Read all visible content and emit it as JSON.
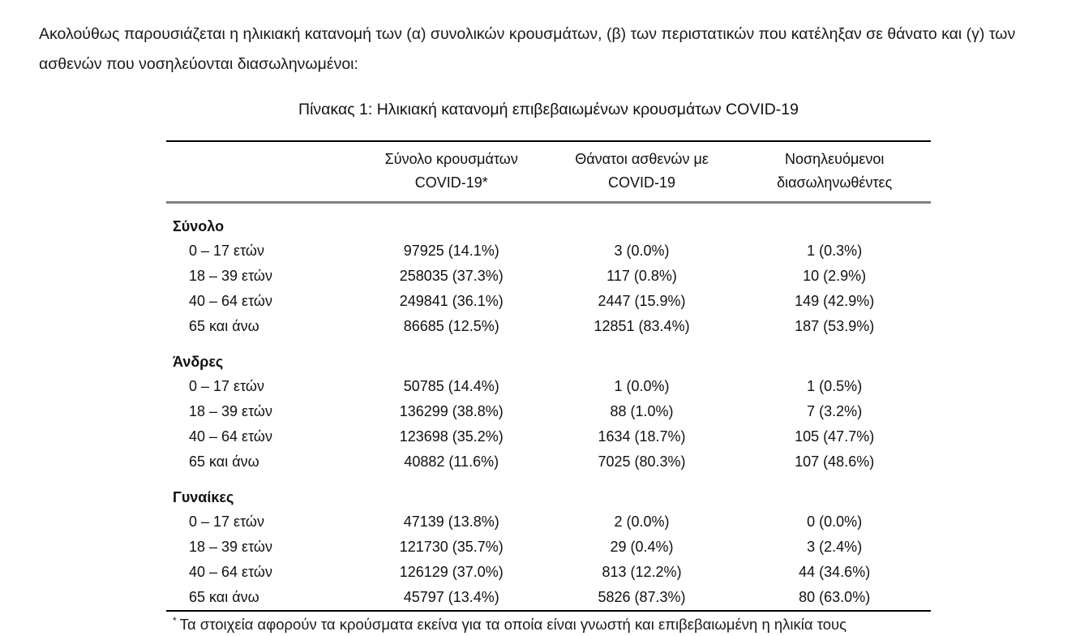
{
  "intro": "Ακολούθως παρουσιάζεται η ηλικιακή κατανομή των (α) συνολικών κρουσμάτων, (β) των περιστατικών που κατέληξαν σε θάνατο και (γ) των ασθενών που νοσηλεύονται διασωληνωμένοι:",
  "table": {
    "title": "Πίνακας 1: Ηλικιακή κατανομή επιβεβαιωμένων κρουσμάτων COVID-19",
    "columns": [
      {
        "line1": "",
        "line2": ""
      },
      {
        "line1": "Σύνολο κρουσμάτων",
        "line2": "COVID-19*"
      },
      {
        "line1": "Θάνατοι ασθενών με",
        "line2": "COVID-19"
      },
      {
        "line1": "Νοσηλευόμενοι",
        "line2": "διασωληνωθέντες"
      }
    ],
    "groups": [
      {
        "label": "Σύνολο",
        "rows": [
          {
            "age": "0 – 17 ετών",
            "cases": "97925 (14.1%)",
            "deaths": "3 (0.0%)",
            "intubated": "1 (0.3%)"
          },
          {
            "age": "18 – 39 ετών",
            "cases": "258035 (37.3%)",
            "deaths": "117 (0.8%)",
            "intubated": "10 (2.9%)"
          },
          {
            "age": "40 – 64 ετών",
            "cases": "249841 (36.1%)",
            "deaths": "2447 (15.9%)",
            "intubated": "149 (42.9%)"
          },
          {
            "age": "65 και άνω",
            "cases": "86685 (12.5%)",
            "deaths": "12851 (83.4%)",
            "intubated": "187 (53.9%)"
          }
        ]
      },
      {
        "label": "Άνδρες",
        "rows": [
          {
            "age": "0 – 17 ετών",
            "cases": "50785 (14.4%)",
            "deaths": "1 (0.0%)",
            "intubated": "1 (0.5%)"
          },
          {
            "age": "18 – 39 ετών",
            "cases": "136299 (38.8%)",
            "deaths": "88 (1.0%)",
            "intubated": "7 (3.2%)"
          },
          {
            "age": "40 – 64 ετών",
            "cases": "123698 (35.2%)",
            "deaths": "1634 (18.7%)",
            "intubated": "105 (47.7%)"
          },
          {
            "age": "65 και άνω",
            "cases": "40882 (11.6%)",
            "deaths": "7025 (80.3%)",
            "intubated": "107 (48.6%)"
          }
        ]
      },
      {
        "label": "Γυναίκες",
        "rows": [
          {
            "age": "0 – 17 ετών",
            "cases": "47139 (13.8%)",
            "deaths": "2 (0.0%)",
            "intubated": "0 (0.0%)"
          },
          {
            "age": "18 – 39 ετών",
            "cases": "121730 (35.7%)",
            "deaths": "29 (0.4%)",
            "intubated": "3 (2.4%)"
          },
          {
            "age": "40 – 64 ετών",
            "cases": "126129 (37.0%)",
            "deaths": "813 (12.2%)",
            "intubated": "44 (34.6%)"
          },
          {
            "age": "65 και άνω",
            "cases": "45797 (13.4%)",
            "deaths": "5826 (87.3%)",
            "intubated": "80 (63.0%)"
          }
        ]
      }
    ],
    "footnote_marker": "*",
    "footnote": "Τα στοιχεία αφορούν τα κρούσματα εκείνα για τα οποία είναι γνωστή και επιβεβαιωμένη η ηλικία τους"
  },
  "colors": {
    "text": "#111111",
    "border_dark": "#000000",
    "border_gray": "#808080"
  }
}
